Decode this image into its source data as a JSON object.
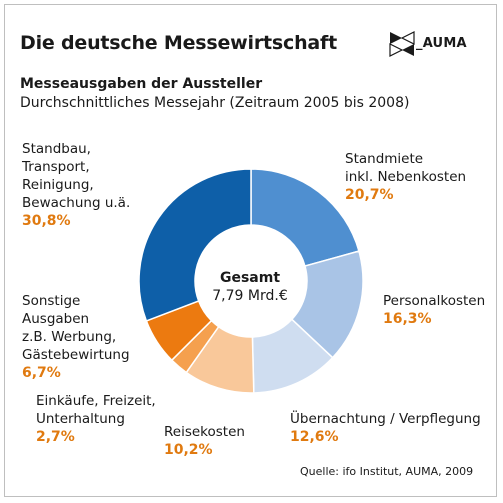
{
  "title": "Die deutsche Messewirtschaft",
  "logo": {
    "text": "_AUMA"
  },
  "subtitle": "Messeausgaben der Aussteller",
  "subtitle2": "Durchschnittliches Messejahr (Zeitraum 2005 bis 2008)",
  "center": {
    "label": "Gesamt",
    "value": "7,79 Mrd.€"
  },
  "source": "Quelle: ifo Institut, AUMA, 2009",
  "colors": {
    "accent_value": "#e07a10"
  },
  "chart_data": {
    "type": "pie",
    "donut": true,
    "title": "Messeausgaben der Aussteller",
    "total_label": "Gesamt",
    "total_value": "7,79 Mrd.€",
    "slices": [
      {
        "label": "Standmiete\ninkl. Nebenkosten",
        "value": 20.7,
        "value_text": "20,7%",
        "color": "#4f8fd0"
      },
      {
        "label": "Personalkosten",
        "value": 16.3,
        "value_text": "16,3%",
        "color": "#a9c4e6"
      },
      {
        "label": "Übernachtung / Verpflegung",
        "value": 12.6,
        "value_text": "12,6%",
        "color": "#cfddf0"
      },
      {
        "label": "Reisekosten",
        "value": 10.2,
        "value_text": "10,2%",
        "color": "#f9c89a"
      },
      {
        "label": "Einkäufe, Freizeit,\nUnterhaltung",
        "value": 2.7,
        "value_text": "2,7%",
        "color": "#f5a04e"
      },
      {
        "label": "Sonstige\nAusgaben\nz.B. Werbung,\nGästebewirtung",
        "value": 6.7,
        "value_text": "6,7%",
        "color": "#ec7a10"
      },
      {
        "label": "Standbau,\nTransport,\nReinigung,\nBewachung u.ä.",
        "value": 30.8,
        "value_text": "30,8%",
        "color": "#0e5fa8"
      }
    ]
  }
}
